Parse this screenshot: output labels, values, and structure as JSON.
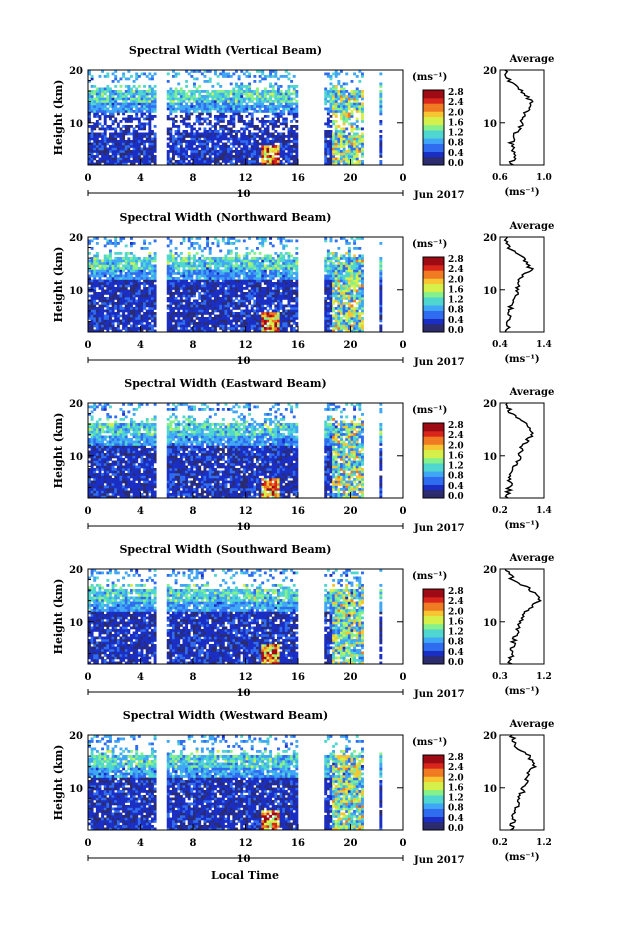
{
  "figure": {
    "xlabel": "Local Time",
    "date_label": "Jun 2017",
    "colorbar_unit": "(ms⁻¹)",
    "colorbar_ticks": [
      "0.0",
      "0.4",
      "0.8",
      "1.2",
      "1.6",
      "2.0",
      "2.4",
      "2.8"
    ],
    "x_ticks": [
      "0",
      "4",
      "8",
      "12",
      "16",
      "20",
      "0"
    ],
    "day_label": "10",
    "ylabel": "Height (km)",
    "y_ticks": [
      "20",
      "10"
    ],
    "avg_title": "Average",
    "avg_xlabel": "(ms⁻¹)",
    "colors": {
      "colormap": [
        "#2b2b6e",
        "#1a2ec4",
        "#2f6cf0",
        "#3fa7f5",
        "#4fd6d0",
        "#86f08a",
        "#d6f04a",
        "#f7c531",
        "#f07a22",
        "#d8261c",
        "#9e0a14"
      ]
    }
  },
  "chart_data": [
    {
      "type": "heatmap",
      "title": "Spectral Width (Vertical Beam)",
      "x_range": [
        0,
        24
      ],
      "y_range": [
        2,
        20
      ],
      "value_range": [
        0.0,
        2.8
      ],
      "data_gaps_hours": [
        [
          5.3,
          5.9
        ],
        [
          16.0,
          18.0
        ],
        [
          21.0,
          22.1
        ],
        [
          22.4,
          24
        ]
      ],
      "avg_profile": {
        "xlim": [
          0.6,
          1.0
        ],
        "xticks": [
          "0.6",
          "1.0"
        ],
        "heights": [
          2,
          4,
          6,
          8,
          10,
          12,
          14,
          16,
          18,
          20
        ],
        "values": [
          0.7,
          0.73,
          0.7,
          0.74,
          0.8,
          0.84,
          0.88,
          0.8,
          0.68,
          0.64
        ]
      }
    },
    {
      "type": "heatmap",
      "title": "Spectral Width (Northward Beam)",
      "x_range": [
        0,
        24
      ],
      "y_range": [
        2,
        20
      ],
      "value_range": [
        0.0,
        2.8
      ],
      "data_gaps_hours": [
        [
          5.3,
          5.9
        ],
        [
          16.0,
          18.0
        ],
        [
          21.0,
          22.1
        ],
        [
          22.4,
          24
        ]
      ],
      "avg_profile": {
        "xlim": [
          0.4,
          1.4
        ],
        "xticks": [
          "0.4",
          "1.4"
        ],
        "heights": [
          2,
          4,
          6,
          8,
          10,
          12,
          14,
          16,
          18,
          20
        ],
        "values": [
          0.55,
          0.6,
          0.62,
          0.7,
          0.8,
          0.85,
          1.1,
          0.95,
          0.6,
          0.55
        ]
      }
    },
    {
      "type": "heatmap",
      "title": "Spectral Width (Eastward Beam)",
      "x_range": [
        0,
        24
      ],
      "y_range": [
        2,
        20
      ],
      "value_range": [
        0.0,
        2.8
      ],
      "data_gaps_hours": [
        [
          5.3,
          5.9
        ],
        [
          16.0,
          18.0
        ],
        [
          21.0,
          22.1
        ],
        [
          22.4,
          24
        ]
      ],
      "avg_profile": {
        "xlim": [
          0.2,
          1.4
        ],
        "xticks": [
          "0.2",
          "1.4"
        ],
        "heights": [
          2,
          4,
          6,
          8,
          10,
          12,
          14,
          16,
          18,
          20
        ],
        "values": [
          0.4,
          0.45,
          0.5,
          0.6,
          0.75,
          0.8,
          1.1,
          0.9,
          0.5,
          0.4
        ]
      }
    },
    {
      "type": "heatmap",
      "title": "Spectral Width (Southward Beam)",
      "x_range": [
        0,
        24
      ],
      "y_range": [
        2,
        20
      ],
      "value_range": [
        0.0,
        2.8
      ],
      "data_gaps_hours": [
        [
          5.3,
          5.9
        ],
        [
          16.0,
          18.0
        ],
        [
          21.0,
          22.1
        ],
        [
          22.4,
          24
        ]
      ],
      "avg_profile": {
        "xlim": [
          0.3,
          1.2
        ],
        "xticks": [
          "0.3",
          "1.2"
        ],
        "heights": [
          2,
          4,
          6,
          8,
          10,
          12,
          14,
          16,
          18,
          20
        ],
        "values": [
          0.5,
          0.55,
          0.58,
          0.65,
          0.7,
          0.85,
          1.1,
          0.95,
          0.55,
          0.45
        ]
      }
    },
    {
      "type": "heatmap",
      "title": "Spectral Width (Westward Beam)",
      "x_range": [
        0,
        24
      ],
      "y_range": [
        2,
        20
      ],
      "value_range": [
        0.0,
        2.8
      ],
      "data_gaps_hours": [
        [
          5.3,
          5.9
        ],
        [
          16.0,
          18.0
        ],
        [
          21.0,
          22.1
        ],
        [
          22.4,
          24
        ]
      ],
      "avg_profile": {
        "xlim": [
          0.2,
          1.2
        ],
        "xticks": [
          "0.2",
          "1.2"
        ],
        "heights": [
          2,
          4,
          6,
          8,
          10,
          12,
          14,
          16,
          18,
          20
        ],
        "values": [
          0.45,
          0.5,
          0.55,
          0.65,
          0.75,
          0.8,
          0.95,
          0.85,
          0.55,
          0.45
        ]
      }
    }
  ]
}
